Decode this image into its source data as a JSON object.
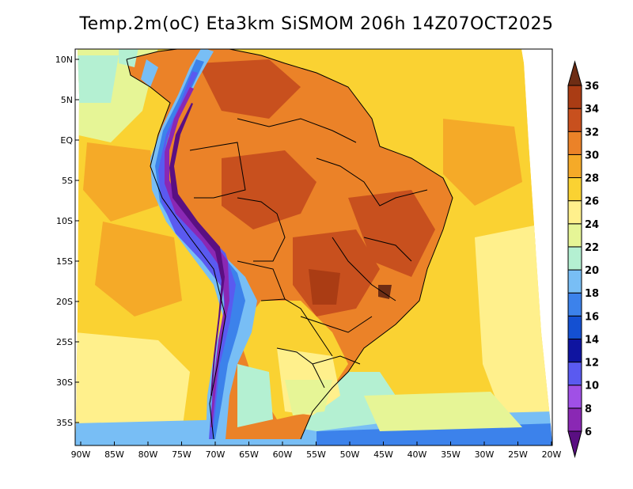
{
  "title": "Temp.2m(oC) Eta3km SiSMOM 206h 14Z07OCT2025",
  "map": {
    "variable": "2 m air temperature",
    "units": "oC",
    "lat_ticks": [
      "10N",
      "5N",
      "EQ",
      "5S",
      "10S",
      "15S",
      "20S",
      "25S",
      "30S",
      "35S"
    ],
    "lon_ticks": [
      "90W",
      "85W",
      "80W",
      "75W",
      "70W",
      "65W",
      "60W",
      "55W",
      "50W",
      "45W",
      "40W",
      "35W",
      "30W",
      "25W",
      "20W"
    ],
    "lat_range": [
      -38,
      11.5
    ],
    "lon_range": [
      -90.5,
      -19.5
    ]
  },
  "colorbar": {
    "levels": [
      "6",
      "8",
      "10",
      "12",
      "14",
      "16",
      "18",
      "20",
      "22",
      "24",
      "26",
      "28",
      "30",
      "32",
      "34",
      "36"
    ],
    "colors": [
      "#5a0f82",
      "#8a28b4",
      "#a050e6",
      "#5a5af0",
      "#0f14a0",
      "#1450d2",
      "#3c82eb",
      "#78bef5",
      "#b4f0d2",
      "#e6f596",
      "#fff08c",
      "#fad232",
      "#f5aa28",
      "#eb8228",
      "#c8501e",
      "#aa3c14",
      "#6e2d14"
    ]
  }
}
